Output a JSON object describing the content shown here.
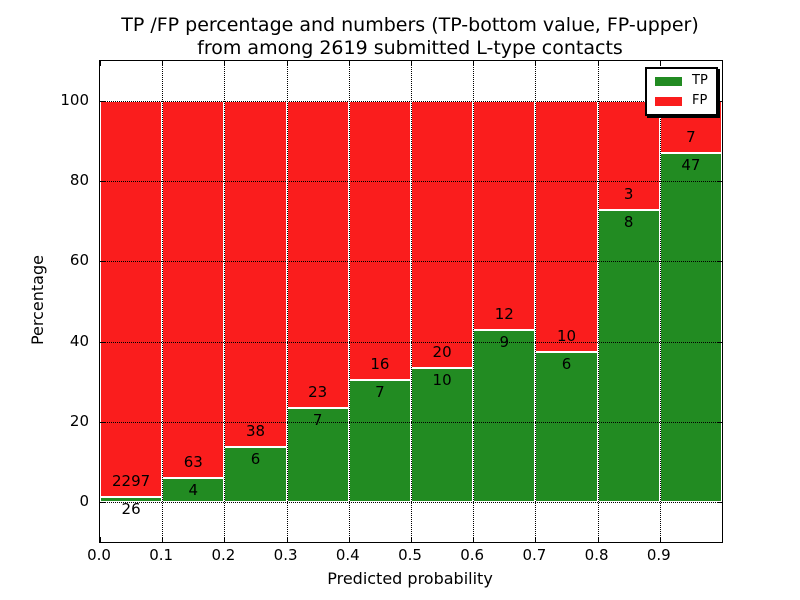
{
  "figure": {
    "title_line1": "TP /FP percentage and numbers (TP-bottom value, FP-upper)",
    "title_line2": "from among 2619 submitted L-type contacts"
  },
  "chart_data": {
    "type": "bar",
    "stacked": true,
    "normalized": "each bar totals 100%",
    "title": "TP /FP percentage and numbers (TP-bottom value, FP-upper) from among 2619 submitted L-type contacts",
    "xlabel": "Predicted probability",
    "ylabel": "Percentage",
    "xlim": [
      0.0,
      1.0
    ],
    "ylim": [
      -10,
      110
    ],
    "grid": "dotted, both axes",
    "bins": [
      [
        0.0,
        0.1
      ],
      [
        0.1,
        0.2
      ],
      [
        0.2,
        0.3
      ],
      [
        0.3,
        0.4
      ],
      [
        0.4,
        0.5
      ],
      [
        0.5,
        0.6
      ],
      [
        0.6,
        0.7
      ],
      [
        0.7,
        0.8
      ],
      [
        0.8,
        0.9
      ],
      [
        0.9,
        1.0
      ]
    ],
    "xtick_labels": [
      "0.0",
      "0.1",
      "0.2",
      "0.3",
      "0.4",
      "0.5",
      "0.6",
      "0.7",
      "0.8",
      "0.9"
    ],
    "yticks": [
      0,
      20,
      40,
      60,
      80,
      100
    ],
    "series": [
      {
        "name": "TP",
        "color": "#228b22",
        "counts": [
          26,
          4,
          6,
          7,
          7,
          10,
          9,
          6,
          8,
          47
        ]
      },
      {
        "name": "FP",
        "color": "#fa1d1d",
        "counts": [
          2297,
          63,
          38,
          23,
          16,
          20,
          12,
          10,
          3,
          7
        ]
      }
    ],
    "tp_percent": [
      1.12,
      5.97,
      13.64,
      23.33,
      30.43,
      33.33,
      42.86,
      37.5,
      72.73,
      87.04
    ],
    "legend": {
      "position": "upper right",
      "entries": [
        {
          "label": "TP",
          "color": "#228b22"
        },
        {
          "label": "FP",
          "color": "#fa1d1d"
        }
      ]
    }
  }
}
